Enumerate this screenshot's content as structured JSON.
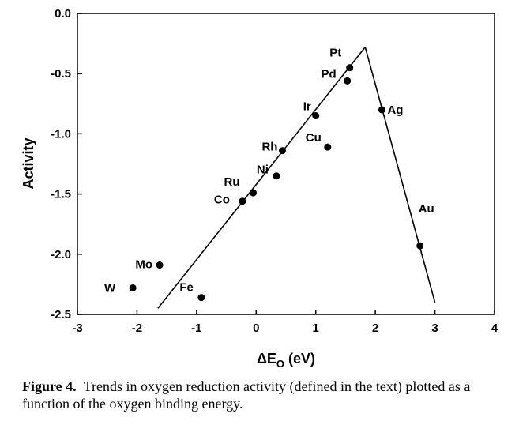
{
  "chart_data": {
    "type": "scatter",
    "xlabel": "ΔE",
    "xlabel_sub": "O",
    "xlabel_unit": "(eV)",
    "ylabel": "Activity",
    "xlim": [
      -3,
      4
    ],
    "ylim": [
      -2.5,
      0.0
    ],
    "x_ticks": [
      -3,
      -2,
      -1,
      0,
      1,
      2,
      3,
      4
    ],
    "y_ticks": [
      0.0,
      -0.5,
      -1.0,
      -1.5,
      -2.0,
      -2.5
    ],
    "x_tick_labels": [
      "-3",
      "-2",
      "-1",
      "0",
      "1",
      "2",
      "3",
      "4"
    ],
    "y_tick_labels": [
      "0.0",
      "-0.5",
      "-1.0",
      "-1.5",
      "-2.0",
      "-2.5"
    ],
    "grid": false,
    "points": [
      {
        "label": "Pt",
        "x": 1.57,
        "y": -0.45
      },
      {
        "label": "Pd",
        "x": 1.53,
        "y": -0.56
      },
      {
        "label": "Ir",
        "x": 1.0,
        "y": -0.85
      },
      {
        "label": "Ag",
        "x": 2.11,
        "y": -0.8
      },
      {
        "label": "Cu",
        "x": 1.2,
        "y": -1.11
      },
      {
        "label": "Rh",
        "x": 0.44,
        "y": -1.14
      },
      {
        "label": "Ni",
        "x": 0.34,
        "y": -1.35
      },
      {
        "label": "Ru",
        "x": -0.05,
        "y": -1.49
      },
      {
        "label": "Co",
        "x": -0.23,
        "y": -1.56
      },
      {
        "label": "Au",
        "x": 2.75,
        "y": -1.93
      },
      {
        "label": "Mo",
        "x": -1.62,
        "y": -2.09
      },
      {
        "label": "W",
        "x": -2.07,
        "y": -2.28
      },
      {
        "label": "Fe",
        "x": -0.92,
        "y": -2.36
      }
    ],
    "lines": [
      {
        "x": [
          -1.65,
          1.83
        ],
        "y": [
          -2.45,
          -0.28
        ]
      },
      {
        "x": [
          1.83,
          3.0
        ],
        "y": [
          -0.28,
          -2.4
        ]
      }
    ]
  },
  "caption": {
    "label": "Figure 4.",
    "text": "Trends in oxygen reduction activity (defined in the text) plotted as a function of the oxygen binding energy."
  }
}
